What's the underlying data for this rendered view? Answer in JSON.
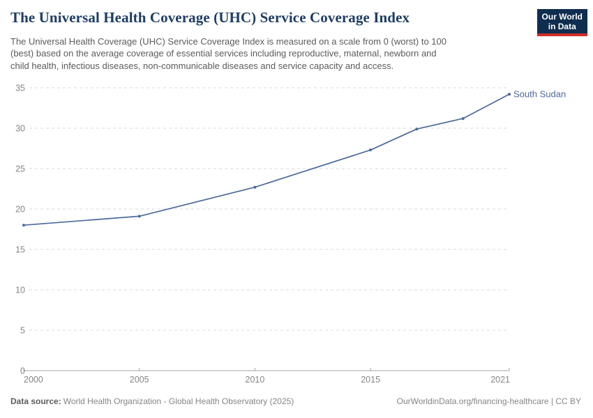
{
  "header": {
    "title": "The Universal Health Coverage (UHC) Service Coverage Index",
    "logo": {
      "line1": "Our World",
      "line2": "in Data"
    }
  },
  "subtitle_lines": [
    "The Universal Health Coverage (UHC) Service Coverage Index is measured on a scale from 0 (worst) to 100",
    "(best) based on the average coverage of essential services including reproductive, maternal, newborn and",
    "child health, infectious diseases, non-communicable diseases and service capacity and access."
  ],
  "chart_data": {
    "type": "line",
    "title": "The Universal Health Coverage (UHC) Service Coverage Index",
    "series": [
      {
        "name": "South Sudan",
        "color": "#4C6A9C",
        "x": [
          2000,
          2005,
          2010,
          2015,
          2017,
          2019,
          2021
        ],
        "values": [
          18.0,
          19.1,
          22.7,
          27.3,
          29.9,
          31.2,
          34.2
        ]
      }
    ],
    "xlabel": "",
    "ylabel": "",
    "xlim": [
      2000,
      2021
    ],
    "ylim": [
      0,
      35
    ],
    "x_ticks": [
      "2000",
      "2005",
      "2010",
      "2015",
      "2021"
    ],
    "x_tick_years": [
      2000,
      2005,
      2010,
      2015,
      2021
    ],
    "y_ticks": [
      0,
      5,
      10,
      15,
      20,
      25,
      30,
      35
    ],
    "grid": "horizontal-dashed",
    "legend_position": "end-of-line-label",
    "end_label": "South Sudan"
  },
  "footer": {
    "source_label": "Data source:",
    "source_text": "World Health Organization - Global Health Observatory (2025)",
    "link_text": "OurWorldinData.org/financing-healthcare | CC BY"
  },
  "colors": {
    "line": "#4C6A9C",
    "title_text": "#1d3d63",
    "subtitle_text": "#5b5b5b",
    "axis_text": "#858585",
    "grid": "#d9d9d9",
    "axis_line": "#a3a3a3",
    "logo_bg": "#0f2d4f",
    "logo_bar": "#cf2d28"
  }
}
